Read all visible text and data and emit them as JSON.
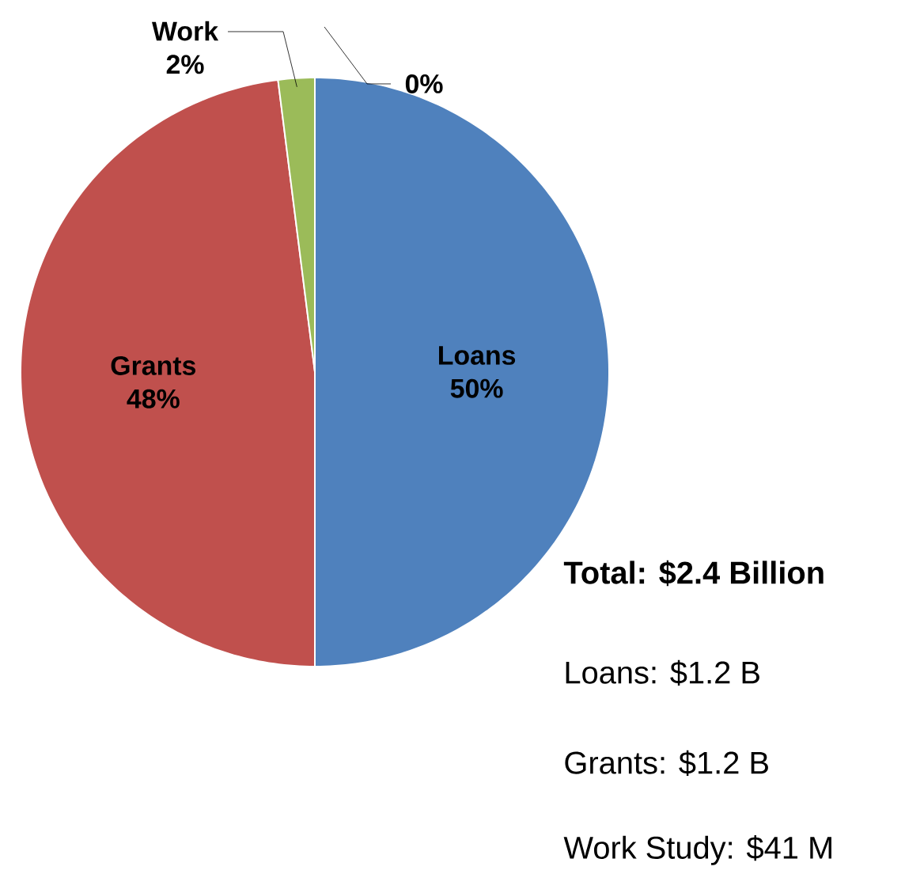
{
  "chart_data": {
    "type": "pie",
    "categories": [
      "Loans",
      "Grants",
      "Work",
      null
    ],
    "values": [
      50,
      48,
      2,
      0
    ],
    "value_labels": [
      "50%",
      "48%",
      "2%",
      "0%"
    ],
    "colors": [
      "#4f81bd",
      "#c0504d",
      "#9bbb59",
      "#8064a2"
    ],
    "annotations": [
      "Total: $2.4 Billion",
      "Loans:   $1.2 B",
      "Grants:  $1.2 B",
      "Work Study: $41 M"
    ]
  }
}
